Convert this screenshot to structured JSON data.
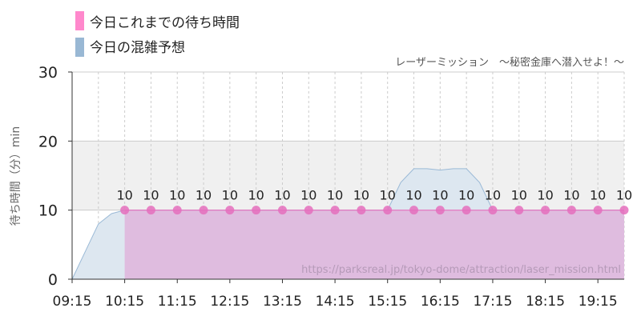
{
  "chart_data": {
    "type": "area",
    "subtitle": "レーザーミッション　～秘密金庫へ潜入せよ！～",
    "ylabel": "待ち時間（分）min",
    "ylim": [
      0,
      30
    ],
    "yticks": [
      0,
      10,
      20,
      30
    ],
    "xticks": [
      "09:15",
      "10:15",
      "11:15",
      "12:15",
      "13:15",
      "14:15",
      "15:15",
      "16:15",
      "17:15",
      "18:15",
      "19:15"
    ],
    "xlim": [
      "09:15",
      "19:45"
    ],
    "highlight_band": [
      10,
      20
    ],
    "source_text": "https://parksreal.jp/tokyo-dome/attraction/laser_mission.html",
    "colors": {
      "actual": "#e56fbd",
      "actual_fill": "#deb9dd",
      "forecast_line": "#9ab9d6",
      "forecast_fill": "#dde7f0",
      "band": "#f0f0f0",
      "grid": "#cccccc"
    },
    "series": [
      {
        "name": "今日これまでの待ち時間",
        "x": [
          "10:15",
          "10:45",
          "11:15",
          "11:45",
          "12:15",
          "12:45",
          "13:15",
          "13:45",
          "14:15",
          "14:45",
          "15:15",
          "15:45",
          "16:15",
          "16:45",
          "17:15",
          "17:45",
          "18:15",
          "18:45",
          "19:15",
          "19:45"
        ],
        "values": [
          10,
          10,
          10,
          10,
          10,
          10,
          10,
          10,
          10,
          10,
          10,
          10,
          10,
          10,
          10,
          10,
          10,
          10,
          10,
          10
        ],
        "labels": [
          "10",
          "10",
          "10",
          "10",
          "10",
          "10",
          "10",
          "10",
          "10",
          "10",
          "10",
          "10",
          "10",
          "10",
          "10",
          "10",
          "10",
          "10",
          "10",
          "10"
        ]
      },
      {
        "name": "今日の混雑予想",
        "x": [
          "09:15",
          "09:30",
          "09:45",
          "10:00",
          "10:15",
          "10:45",
          "11:15",
          "11:45",
          "12:15",
          "12:45",
          "13:15",
          "13:45",
          "14:15",
          "14:45",
          "15:15",
          "15:30",
          "15:45",
          "16:00",
          "16:15",
          "16:30",
          "16:45",
          "17:00",
          "17:15",
          "17:45",
          "18:15",
          "18:45",
          "19:15",
          "19:45"
        ],
        "values": [
          0,
          4,
          8,
          9.5,
          10,
          10,
          10,
          10,
          10,
          10,
          10,
          10,
          10,
          10,
          10,
          14,
          16,
          16,
          15.8,
          16,
          16,
          14,
          10,
          10,
          10,
          10,
          10,
          10
        ]
      }
    ]
  }
}
